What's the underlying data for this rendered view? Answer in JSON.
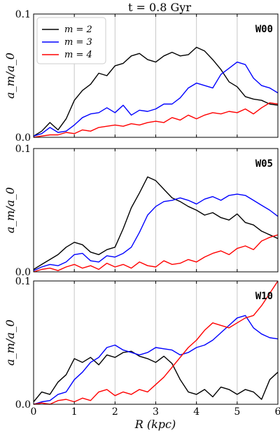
{
  "title": "t = 0.8 Gyr",
  "xlabel": "R (kpc)",
  "ylabel": "a_m/a_0",
  "legend": {
    "position": "top-left",
    "entries": [
      {
        "label": "m = 2",
        "color": "#000000"
      },
      {
        "label": "m = 3",
        "color": "#0000ff"
      },
      {
        "label": "m = 4",
        "color": "#ff0000"
      }
    ]
  },
  "chart_data": [
    {
      "type": "line",
      "panel_label": "W00",
      "xlim": [
        0,
        6
      ],
      "ylim": [
        0,
        0.1
      ],
      "x_ticks": [
        "0",
        "1",
        "2",
        "3",
        "4",
        "5",
        "6"
      ],
      "y_ticks": [
        "0.0",
        "0.1"
      ],
      "x_tick_values": [
        0,
        1,
        2,
        3,
        4,
        5,
        6
      ],
      "y_tick_values": [
        0,
        0.1
      ],
      "grid": "vertical",
      "x": [
        0,
        0.2,
        0.4,
        0.6,
        0.8,
        1.0,
        1.2,
        1.4,
        1.6,
        1.8,
        2.0,
        2.2,
        2.4,
        2.6,
        2.8,
        3.0,
        3.2,
        3.4,
        3.6,
        3.8,
        4.0,
        4.2,
        4.4,
        4.6,
        4.8,
        5.0,
        5.2,
        5.4,
        5.6,
        5.8,
        6.0
      ],
      "series": [
        {
          "name": "m = 2",
          "color": "#000000",
          "values": [
            0.001,
            0.005,
            0.012,
            0.006,
            0.015,
            0.03,
            0.038,
            0.043,
            0.052,
            0.05,
            0.058,
            0.06,
            0.066,
            0.068,
            0.063,
            0.061,
            0.066,
            0.069,
            0.066,
            0.067,
            0.073,
            0.07,
            0.063,
            0.055,
            0.045,
            0.041,
            0.033,
            0.031,
            0.03,
            0.027,
            0.026
          ]
        },
        {
          "name": "m = 3",
          "color": "#0000ff",
          "values": [
            0.001,
            0.003,
            0.008,
            0.004,
            0.005,
            0.01,
            0.016,
            0.019,
            0.02,
            0.024,
            0.02,
            0.026,
            0.018,
            0.022,
            0.021,
            0.023,
            0.027,
            0.027,
            0.032,
            0.04,
            0.044,
            0.042,
            0.04,
            0.051,
            0.056,
            0.061,
            0.059,
            0.048,
            0.042,
            0.04,
            0.036
          ]
        },
        {
          "name": "m = 4",
          "color": "#ff0000",
          "values": [
            0.0,
            0.001,
            0.002,
            0.002,
            0.004,
            0.003,
            0.006,
            0.005,
            0.008,
            0.009,
            0.01,
            0.009,
            0.011,
            0.01,
            0.012,
            0.013,
            0.012,
            0.016,
            0.014,
            0.018,
            0.015,
            0.018,
            0.02,
            0.019,
            0.021,
            0.02,
            0.023,
            0.019,
            0.024,
            0.028,
            0.027
          ]
        }
      ]
    },
    {
      "type": "line",
      "panel_label": "W05",
      "xlim": [
        0,
        6
      ],
      "ylim": [
        0,
        0.1
      ],
      "x_ticks": [
        "0",
        "1",
        "2",
        "3",
        "4",
        "5",
        "6"
      ],
      "y_ticks": [
        "0.0",
        "0.1"
      ],
      "x_tick_values": [
        0,
        1,
        2,
        3,
        4,
        5,
        6
      ],
      "y_tick_values": [
        0,
        0.1
      ],
      "grid": "vertical",
      "x": [
        0,
        0.2,
        0.4,
        0.6,
        0.8,
        1.0,
        1.2,
        1.4,
        1.6,
        1.8,
        2.0,
        2.2,
        2.4,
        2.6,
        2.8,
        3.0,
        3.2,
        3.4,
        3.6,
        3.8,
        4.0,
        4.2,
        4.4,
        4.6,
        4.8,
        5.0,
        5.2,
        5.4,
        5.6,
        5.8,
        6.0
      ],
      "series": [
        {
          "name": "m = 2",
          "color": "#000000",
          "values": [
            0.002,
            0.006,
            0.01,
            0.014,
            0.02,
            0.024,
            0.022,
            0.016,
            0.014,
            0.018,
            0.02,
            0.035,
            0.052,
            0.064,
            0.077,
            0.074,
            0.067,
            0.06,
            0.057,
            0.053,
            0.05,
            0.046,
            0.048,
            0.044,
            0.042,
            0.047,
            0.04,
            0.038,
            0.033,
            0.03,
            0.027
          ]
        },
        {
          "name": "m = 3",
          "color": "#0000ff",
          "values": [
            0.001,
            0.004,
            0.006,
            0.005,
            0.008,
            0.014,
            0.015,
            0.009,
            0.008,
            0.013,
            0.012,
            0.015,
            0.02,
            0.032,
            0.046,
            0.053,
            0.057,
            0.058,
            0.06,
            0.058,
            0.055,
            0.059,
            0.061,
            0.058,
            0.062,
            0.063,
            0.062,
            0.058,
            0.054,
            0.05,
            0.045
          ]
        },
        {
          "name": "m = 4",
          "color": "#ff0000",
          "values": [
            0.0,
            0.002,
            0.003,
            0.001,
            0.004,
            0.006,
            0.003,
            0.005,
            0.002,
            0.007,
            0.004,
            0.006,
            0.003,
            0.008,
            0.005,
            0.004,
            0.009,
            0.006,
            0.007,
            0.01,
            0.008,
            0.012,
            0.015,
            0.017,
            0.014,
            0.019,
            0.021,
            0.018,
            0.025,
            0.028,
            0.03
          ]
        }
      ]
    },
    {
      "type": "line",
      "panel_label": "W10",
      "xlim": [
        0,
        6
      ],
      "ylim": [
        0,
        0.1
      ],
      "x_ticks": [
        "0",
        "1",
        "2",
        "3",
        "4",
        "5",
        "6"
      ],
      "y_ticks": [
        "0.0",
        "0.1"
      ],
      "x_tick_values": [
        0,
        1,
        2,
        3,
        4,
        5,
        6
      ],
      "y_tick_values": [
        0,
        0.1
      ],
      "grid": "vertical",
      "x": [
        0,
        0.2,
        0.4,
        0.6,
        0.8,
        1.0,
        1.2,
        1.4,
        1.6,
        1.8,
        2.0,
        2.2,
        2.4,
        2.6,
        2.8,
        3.0,
        3.2,
        3.4,
        3.6,
        3.8,
        4.0,
        4.2,
        4.4,
        4.6,
        4.8,
        5.0,
        5.2,
        5.4,
        5.6,
        5.8,
        6.0
      ],
      "series": [
        {
          "name": "m = 2",
          "color": "#000000",
          "values": [
            0.002,
            0.01,
            0.008,
            0.018,
            0.024,
            0.037,
            0.034,
            0.038,
            0.032,
            0.04,
            0.038,
            0.042,
            0.043,
            0.039,
            0.037,
            0.034,
            0.039,
            0.033,
            0.02,
            0.01,
            0.008,
            0.012,
            0.006,
            0.014,
            0.012,
            0.008,
            0.012,
            0.01,
            0.004,
            0.02,
            0.026
          ]
        },
        {
          "name": "m = 3",
          "color": "#0000ff",
          "values": [
            0.0,
            0.002,
            0.003,
            0.008,
            0.01,
            0.02,
            0.026,
            0.034,
            0.038,
            0.046,
            0.048,
            0.044,
            0.042,
            0.04,
            0.042,
            0.046,
            0.045,
            0.044,
            0.04,
            0.042,
            0.046,
            0.048,
            0.052,
            0.058,
            0.064,
            0.07,
            0.072,
            0.062,
            0.057,
            0.054,
            0.053
          ]
        },
        {
          "name": "m = 4",
          "color": "#ff0000",
          "values": [
            0.0,
            0.001,
            0.0,
            0.003,
            0.004,
            0.002,
            0.005,
            0.003,
            0.01,
            0.012,
            0.007,
            0.01,
            0.008,
            0.012,
            0.01,
            0.016,
            0.022,
            0.03,
            0.038,
            0.046,
            0.052,
            0.06,
            0.066,
            0.064,
            0.062,
            0.066,
            0.07,
            0.072,
            0.08,
            0.09,
            0.1
          ]
        }
      ]
    }
  ]
}
